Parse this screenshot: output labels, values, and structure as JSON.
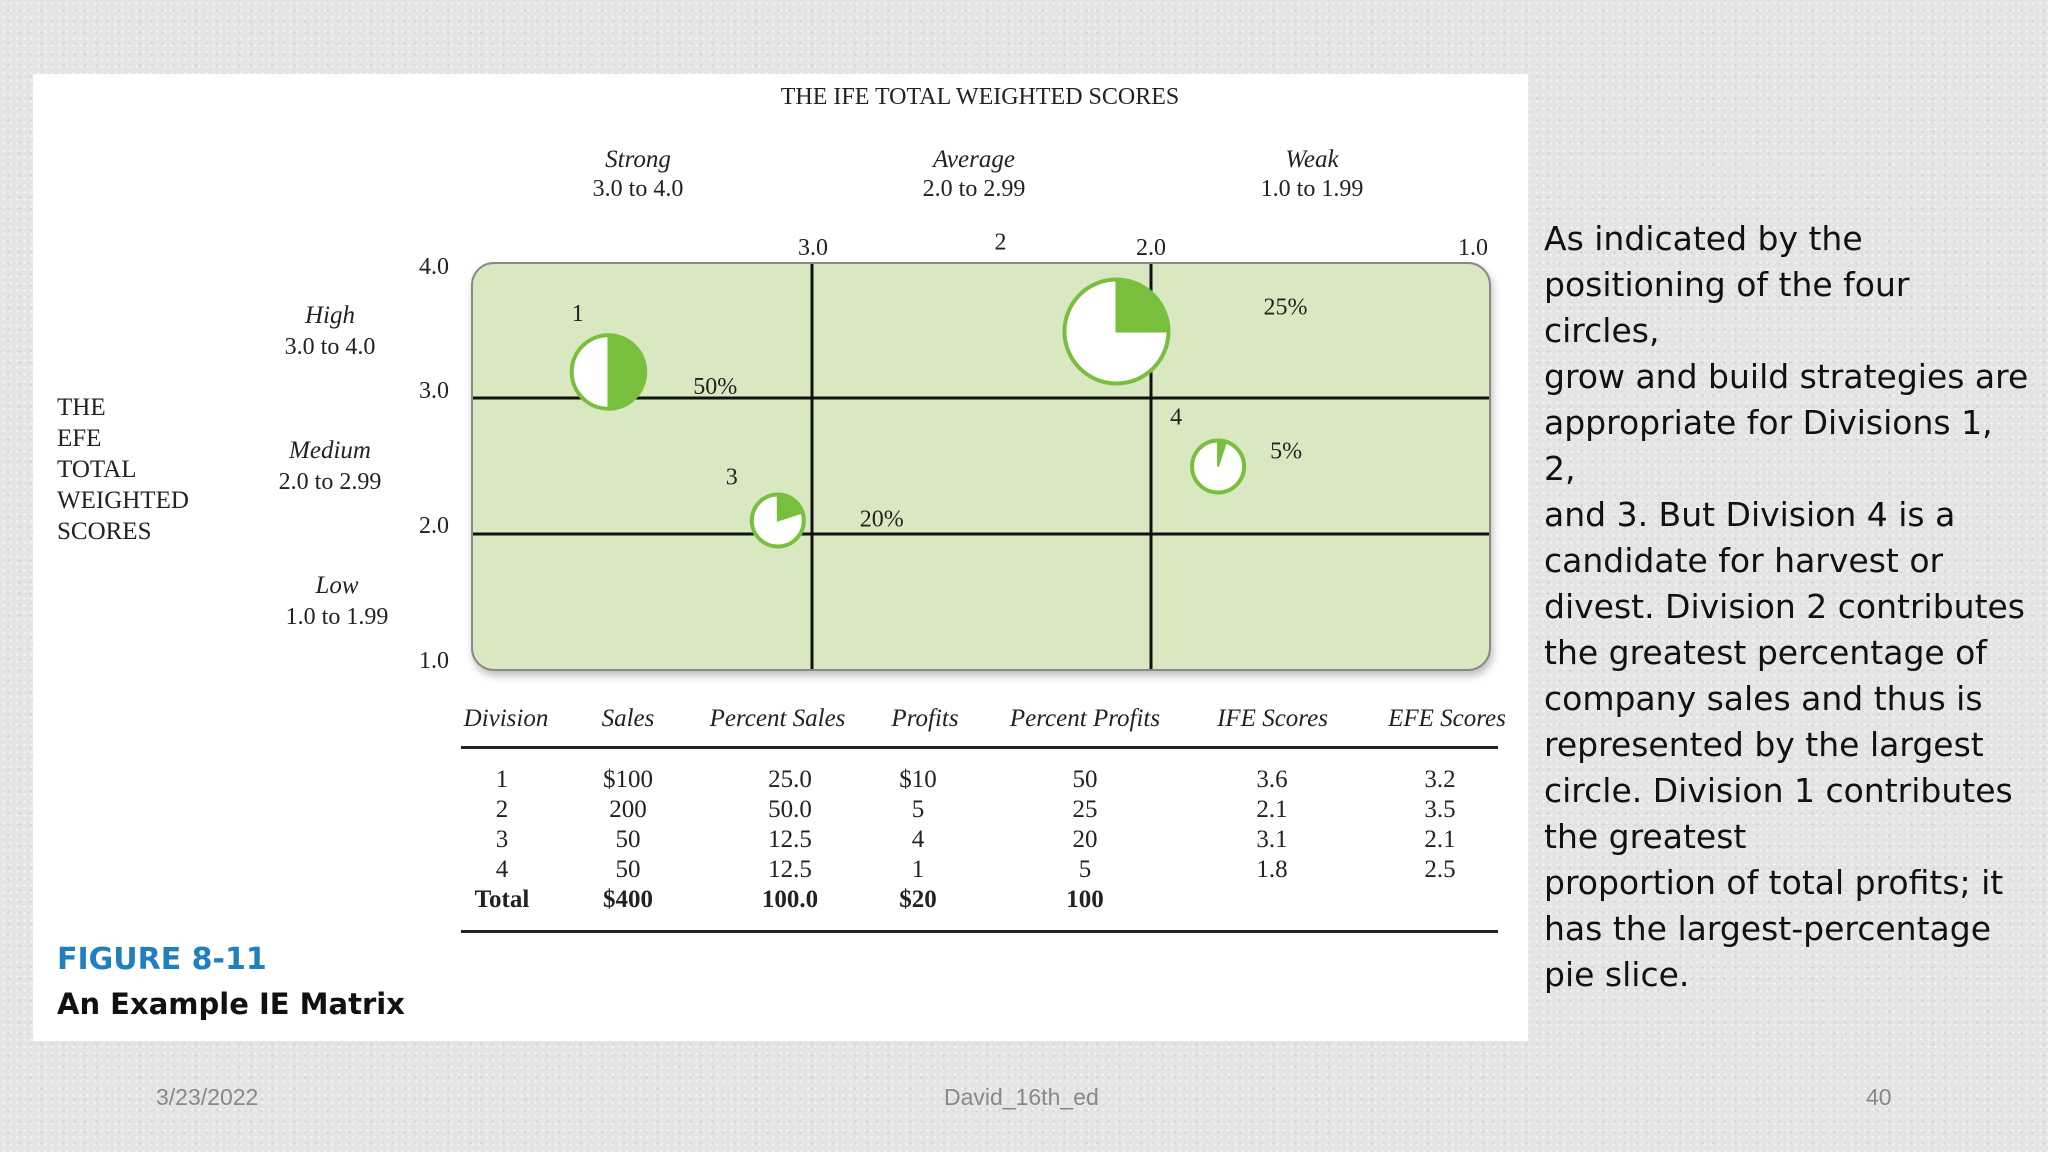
{
  "matrix": {
    "top_title": "THE IFE TOTAL WEIGHTED SCORES",
    "left_title": [
      "THE",
      "EFE",
      "TOTAL",
      "WEIGHTED",
      "SCORES"
    ],
    "columns": [
      {
        "name": "Strong",
        "range": "3.0 to 4.0"
      },
      {
        "name": "Average",
        "range": "2.0 to 2.99"
      },
      {
        "name": "Weak",
        "range": "1.0 to 1.99"
      }
    ],
    "rows": [
      {
        "name": "High",
        "range": "3.0 to 4.0"
      },
      {
        "name": "Medium",
        "range": "2.0 to 2.99"
      },
      {
        "name": "Low",
        "range": "1.0 to 1.99"
      }
    ],
    "x_ticks": [
      "3.0",
      "2.0",
      "1.0"
    ],
    "y_ticks": [
      "4.0",
      "3.0",
      "2.0",
      "1.0"
    ],
    "x_range": [
      4.0,
      1.0
    ],
    "y_range": [
      1.0,
      4.0
    ],
    "fill_color": "#d9e8c0",
    "accent_color": "#79bf3e",
    "circles": [
      {
        "label": "1",
        "profit_label": "50%",
        "ife": 3.6,
        "efe": 3.2,
        "sales_share": 25.0,
        "profit_share": 50
      },
      {
        "label": "2",
        "profit_label": "25%",
        "ife": 2.1,
        "efe": 3.5,
        "sales_share": 50.0,
        "profit_share": 25
      },
      {
        "label": "3",
        "profit_label": "20%",
        "ife": 3.1,
        "efe": 2.1,
        "sales_share": 12.5,
        "profit_share": 20
      },
      {
        "label": "4",
        "profit_label": "5%",
        "ife": 1.8,
        "efe": 2.5,
        "sales_share": 12.5,
        "profit_share": 5
      }
    ]
  },
  "table": {
    "headers": [
      "Division",
      "Sales",
      "Percent Sales",
      "Profits",
      "Percent Profits",
      "IFE Scores",
      "EFE Scores"
    ],
    "rows": [
      [
        "1",
        "$100",
        "25.0",
        "$10",
        "50",
        "3.6",
        "3.2"
      ],
      [
        "2",
        "200",
        "50.0",
        "5",
        "25",
        "2.1",
        "3.5"
      ],
      [
        "3",
        "50",
        "12.5",
        "4",
        "20",
        "3.1",
        "2.1"
      ],
      [
        "4",
        "50",
        "12.5",
        "1",
        "5",
        "1.8",
        "2.5"
      ]
    ],
    "total": [
      "Total",
      "$400",
      "100.0",
      "$20",
      "100",
      "",
      ""
    ]
  },
  "figure": {
    "number": "FIGURE 8-11",
    "caption": "An Example IE Matrix"
  },
  "side_text": "As indicated by the\npositioning of the four circles,\ngrow and build strategies are\nappropriate for Divisions 1, 2,\nand 3. But Division 4 is a\ncandidate for harvest or\ndivest. Division 2 contributes\nthe greatest percentage of\ncompany sales and thus is\nrepresented by the largest\ncircle. Division 1 contributes\nthe greatest\nproportion of total profits; it\nhas the largest-percentage\npie slice.",
  "footer": {
    "date": "3/23/2022",
    "source": "David_16th_ed",
    "page": "40"
  }
}
